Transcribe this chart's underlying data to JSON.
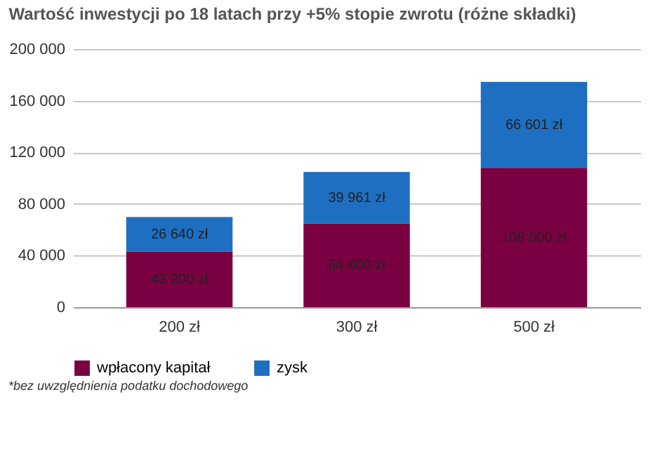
{
  "chart_data": {
    "type": "bar",
    "stacked": true,
    "title": "Wartość inwestycji po 18 latach przy +5% stopie zwrotu (różne składki)",
    "categories": [
      "200 zł",
      "300 zł",
      "500 zł"
    ],
    "series": [
      {
        "name": "wpłacony kapitał",
        "color": "#7b0041",
        "values": [
          43200,
          64800,
          108000
        ],
        "value_labels": [
          "43 200 zł",
          "64 800 zł",
          "108 000 zł"
        ]
      },
      {
        "name": "zysk",
        "color": "#1e6fc1",
        "values": [
          26640,
          39961,
          66601
        ],
        "value_labels": [
          "26 640 zł",
          "39 961 zł",
          "66 601 zł"
        ]
      }
    ],
    "ylim": [
      0,
      200000
    ],
    "yticks": [
      {
        "value": 0,
        "label": "0"
      },
      {
        "value": 40000,
        "label": "40 000"
      },
      {
        "value": 80000,
        "label": "80 000"
      },
      {
        "value": 120000,
        "label": "120 000"
      },
      {
        "value": 160000,
        "label": "160 000"
      },
      {
        "value": 200000,
        "label": "200 000"
      }
    ],
    "grid": "y",
    "legend": "bottom",
    "annotations": [
      "*bez uwzględnienia podatku dochodowego"
    ]
  }
}
